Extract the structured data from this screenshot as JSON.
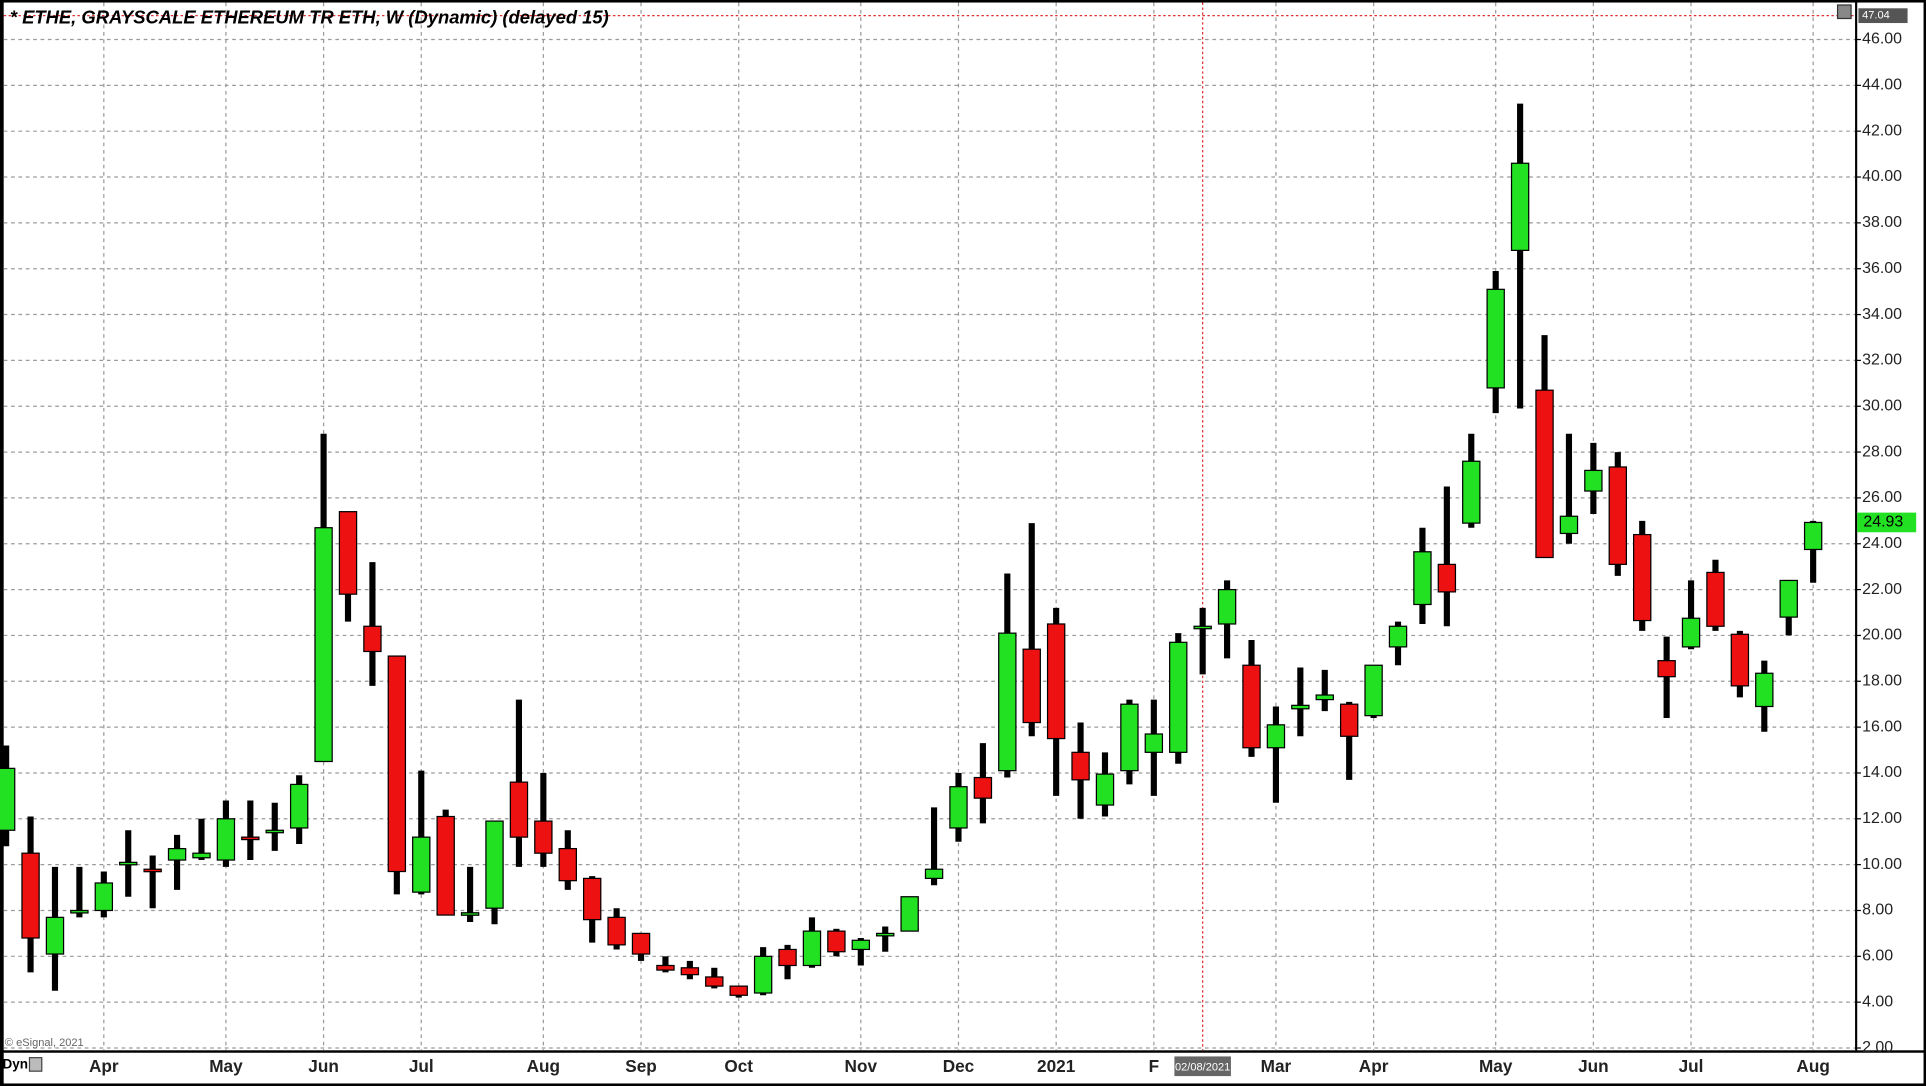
{
  "chart_data": {
    "type": "candlestick",
    "title": "* ETHE, GRAYSCALE ETHEREUM TR ETH, W (Dynamic) (delayed 15)",
    "interval_label": "Dyn",
    "copyright": "© eSignal, 2021",
    "crosshair_value": 47.04,
    "crosshair_date": "02/08/2021",
    "last_price": 24.93,
    "up_color": "#22e022",
    "down_color": "#ee1111",
    "grid": true,
    "ylim": [
      1.9,
      47.72
    ],
    "yticks": [
      {
        "value": 2,
        "label": "2.00"
      },
      {
        "value": 4,
        "label": "4.00"
      },
      {
        "value": 6,
        "label": "6.00"
      },
      {
        "value": 8,
        "label": "8.00"
      },
      {
        "value": 10,
        "label": "10.00"
      },
      {
        "value": 12,
        "label": "12.00"
      },
      {
        "value": 14,
        "label": "14.00"
      },
      {
        "value": 16,
        "label": "16.00"
      },
      {
        "value": 18,
        "label": "18.00"
      },
      {
        "value": 20,
        "label": "20.00"
      },
      {
        "value": 22,
        "label": "22.00"
      },
      {
        "value": 24,
        "label": "24.00"
      },
      {
        "value": 26,
        "label": "26.00"
      },
      {
        "value": 28,
        "label": "28.00"
      },
      {
        "value": 30,
        "label": "30.00"
      },
      {
        "value": 32,
        "label": "32.00"
      },
      {
        "value": 34,
        "label": "34.00"
      },
      {
        "value": 36,
        "label": "36.00"
      },
      {
        "value": 38,
        "label": "38.00"
      },
      {
        "value": 40,
        "label": "40.00"
      },
      {
        "value": 42,
        "label": "42.00"
      },
      {
        "value": 44,
        "label": "44.00"
      },
      {
        "value": 46,
        "label": "46.00"
      }
    ],
    "categories": [
      null,
      null,
      null,
      null,
      "Apr",
      null,
      null,
      null,
      null,
      "May",
      null,
      null,
      null,
      "Jun",
      null,
      null,
      null,
      "Jul",
      null,
      null,
      null,
      null,
      "Aug",
      null,
      null,
      null,
      "Sep",
      null,
      null,
      null,
      "Oct",
      null,
      null,
      null,
      null,
      "Nov",
      null,
      null,
      null,
      "Dec",
      null,
      null,
      null,
      "2021",
      null,
      null,
      null,
      "F",
      null,
      null,
      null,
      null,
      "Mar",
      null,
      null,
      null,
      "Apr",
      null,
      null,
      null,
      null,
      "May",
      null,
      null,
      null,
      "Jun",
      null,
      null,
      null,
      "Jul",
      null,
      null,
      null,
      null,
      "Aug"
    ],
    "open": [
      11.5,
      10.5,
      6.1,
      7.9,
      8.0,
      10.0,
      9.8,
      10.2,
      10.3,
      10.2,
      11.2,
      11.4,
      11.6,
      14.5,
      25.4,
      20.4,
      19.1,
      8.8,
      12.1,
      7.8,
      8.1,
      13.6,
      11.9,
      10.7,
      9.4,
      7.7,
      7.0,
      5.6,
      5.5,
      5.1,
      4.7,
      4.4,
      6.3,
      5.6,
      7.1,
      6.3,
      6.9,
      7.1,
      9.4,
      11.6,
      13.8,
      14.1,
      19.4,
      20.5,
      14.9,
      12.6,
      14.1,
      14.9,
      14.9,
      20.3,
      20.5,
      18.7,
      15.1,
      16.8,
      17.2,
      17.0,
      16.5,
      19.5,
      21.35,
      23.1,
      24.9,
      30.8,
      36.8,
      30.7,
      24.45,
      26.3,
      27.35,
      24.4,
      18.9,
      19.5,
      22.75,
      20.05,
      16.9,
      20.8,
      23.75
    ],
    "high": [
      15.2,
      12.1,
      9.9,
      9.9,
      9.7,
      11.5,
      10.4,
      11.3,
      12.0,
      12.8,
      12.8,
      12.7,
      13.9,
      28.8,
      25.4,
      23.2,
      19.1,
      14.1,
      12.4,
      9.9,
      11.9,
      17.2,
      14.0,
      11.5,
      9.5,
      8.1,
      7.0,
      6.0,
      5.8,
      5.5,
      4.7,
      6.4,
      6.5,
      7.7,
      7.2,
      6.8,
      7.3,
      8.6,
      12.5,
      14.0,
      15.3,
      22.7,
      24.9,
      21.2,
      16.2,
      14.9,
      17.2,
      17.2,
      20.1,
      21.2,
      22.4,
      19.8,
      16.9,
      18.6,
      18.5,
      17.1,
      18.7,
      20.6,
      24.7,
      26.5,
      28.8,
      35.9,
      43.2,
      33.1,
      28.8,
      28.4,
      28.0,
      25.0,
      19.95,
      22.4,
      23.3,
      20.2,
      18.9,
      22.4,
      25.0
    ],
    "low": [
      10.8,
      5.3,
      4.5,
      7.7,
      7.7,
      8.6,
      8.1,
      8.9,
      10.2,
      9.9,
      10.2,
      10.6,
      10.9,
      14.5,
      20.6,
      17.8,
      8.7,
      8.7,
      7.8,
      7.5,
      7.4,
      9.9,
      9.9,
      8.9,
      6.6,
      6.3,
      5.8,
      5.3,
      5.0,
      4.6,
      4.2,
      4.3,
      5.0,
      5.5,
      6.0,
      5.6,
      6.2,
      7.1,
      9.1,
      11.0,
      11.8,
      13.8,
      15.6,
      13.0,
      12.0,
      12.1,
      13.5,
      13.0,
      14.4,
      18.3,
      19.0,
      14.7,
      12.7,
      15.6,
      16.7,
      13.7,
      16.4,
      18.7,
      20.5,
      20.4,
      24.7,
      29.7,
      29.9,
      23.4,
      24.0,
      25.3,
      22.6,
      20.2,
      16.4,
      19.4,
      20.2,
      17.3,
      15.8,
      20.0,
      22.3
    ],
    "close": [
      14.2,
      6.8,
      7.7,
      8.0,
      9.2,
      10.1,
      9.7,
      10.7,
      10.5,
      12.0,
      11.1,
      11.5,
      13.5,
      24.7,
      21.8,
      19.3,
      9.7,
      11.2,
      7.8,
      7.9,
      11.9,
      11.2,
      10.5,
      9.3,
      7.6,
      6.5,
      6.1,
      5.4,
      5.2,
      4.7,
      4.3,
      6.0,
      5.6,
      7.1,
      6.2,
      6.7,
      7.0,
      8.6,
      9.8,
      13.4,
      12.9,
      20.1,
      16.2,
      15.5,
      13.7,
      13.95,
      17.0,
      15.7,
      19.7,
      20.4,
      22.0,
      15.1,
      16.1,
      16.95,
      17.4,
      15.6,
      18.7,
      20.4,
      23.65,
      21.9,
      27.6,
      35.1,
      40.6,
      23.4,
      25.2,
      27.2,
      23.1,
      20.65,
      18.2,
      20.75,
      20.4,
      17.8,
      18.35,
      22.4,
      24.93
    ]
  }
}
